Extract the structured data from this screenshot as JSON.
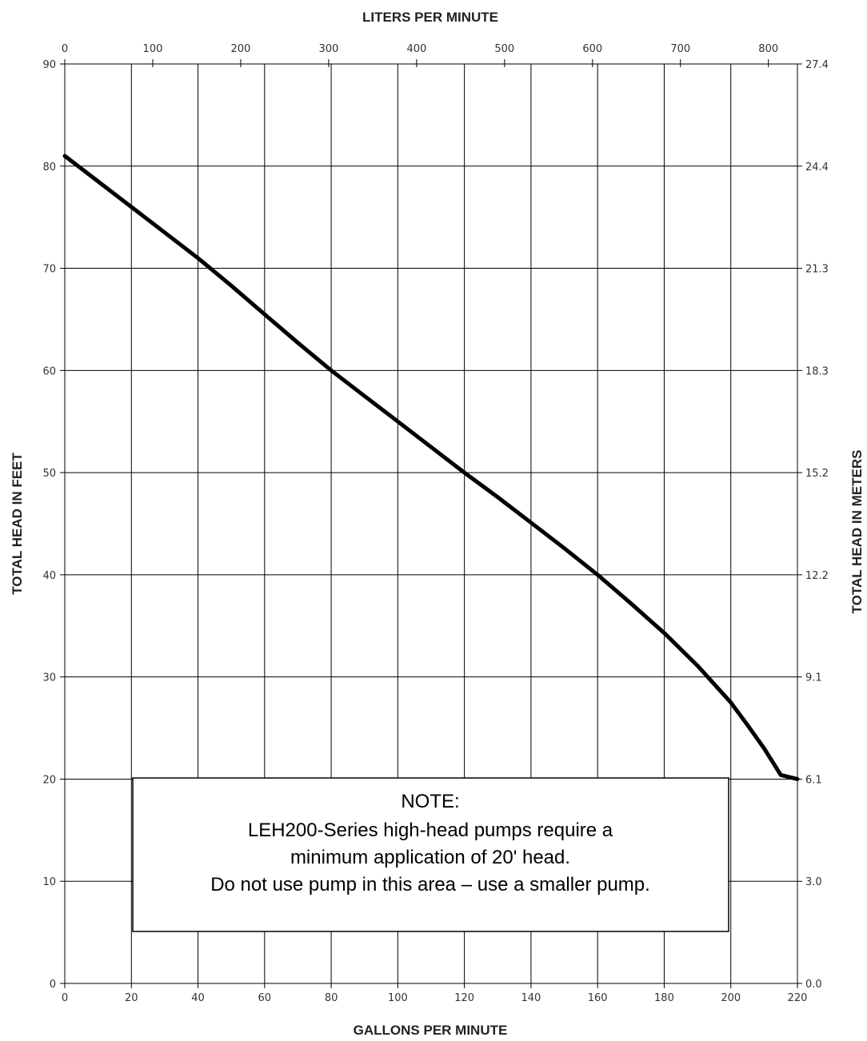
{
  "chart_data": {
    "type": "line",
    "xlabel": "GALLONS PER MINUTE",
    "x2label": "LITERS PER MINUTE",
    "ylabel": "TOTAL HEAD IN FEET",
    "y2label": "TOTAL HEAD IN METERS",
    "xlim": [
      0,
      220
    ],
    "x2lim": [
      0,
      833
    ],
    "ylim": [
      0,
      90
    ],
    "x_ticks": [
      0,
      20,
      40,
      60,
      80,
      100,
      120,
      140,
      160,
      180,
      200,
      220
    ],
    "x2_ticks": [
      0,
      100,
      200,
      300,
      400,
      500,
      600,
      700,
      800
    ],
    "y_ticks": [
      0,
      10,
      20,
      30,
      40,
      50,
      60,
      70,
      80,
      90
    ],
    "y2_tick_labels": [
      "0.0",
      "3.0",
      "6.1",
      "9.1",
      "12.2",
      "15.2",
      "18.3",
      "21.3",
      "24.4",
      "27.4"
    ],
    "grid": true,
    "series": [
      {
        "color": "#000000",
        "x": [
          0,
          10,
          20,
          30,
          40,
          50,
          60,
          70,
          80,
          90,
          100,
          110,
          120,
          130,
          140,
          150,
          160,
          170,
          180,
          190,
          195,
          200,
          205,
          210,
          215,
          220
        ],
        "y": [
          81,
          78.5,
          76,
          73.5,
          71,
          68.3,
          65.5,
          62.7,
          60,
          57.5,
          55,
          52.5,
          50,
          47.6,
          45.1,
          42.6,
          40,
          37.2,
          34.3,
          31.1,
          29.3,
          27.5,
          25.3,
          23,
          20.4,
          20
        ]
      }
    ],
    "annotation": {
      "title": "NOTE:",
      "lines": [
        "LEH200-Series high-head pumps require a",
        "minimum application of 20' head.",
        "Do not use pump in this area – use a smaller pump."
      ]
    }
  }
}
